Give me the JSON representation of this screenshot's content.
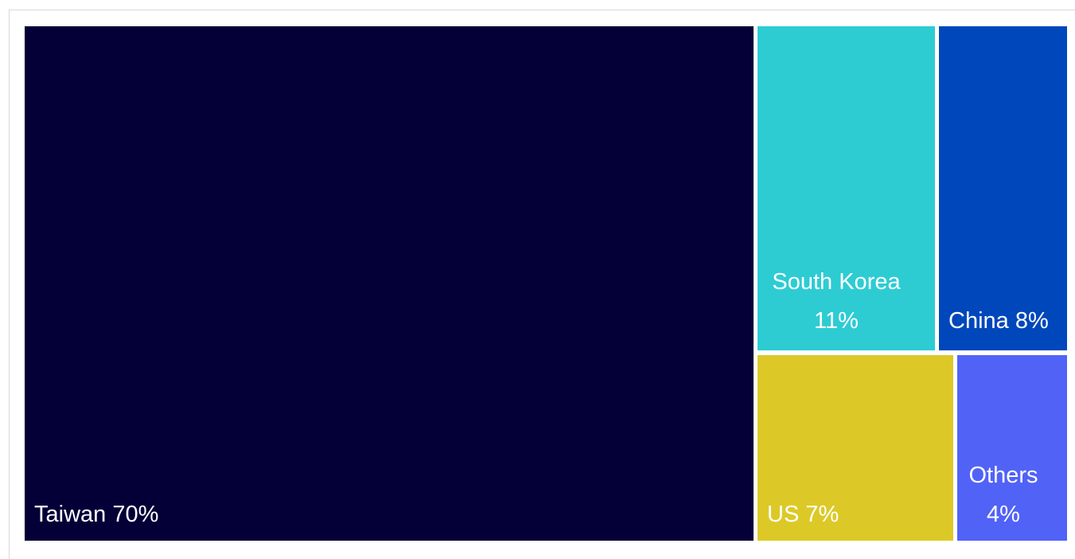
{
  "chart_data": {
    "type": "treemap",
    "items": [
      {
        "name": "Taiwan",
        "value_label": "70%",
        "value": 70,
        "color": "#040037"
      },
      {
        "name": "South Korea",
        "value_label": "11%",
        "value": 11,
        "color": "#2dccd3"
      },
      {
        "name": "China",
        "value_label": "8%",
        "value": 8,
        "color": "#0047bb"
      },
      {
        "name": "US",
        "value_label": "7%",
        "value": 7,
        "color": "#dcc928"
      },
      {
        "name": "Others",
        "value_label": "4%",
        "value": 4,
        "color": "#5162f7"
      }
    ]
  }
}
